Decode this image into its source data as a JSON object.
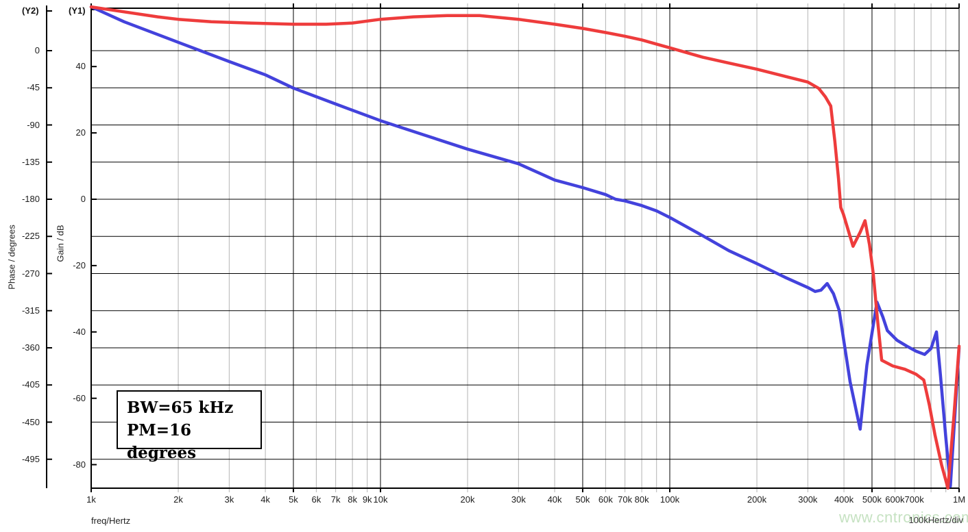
{
  "watermark": "www.cntronics.com",
  "chart_data": {
    "type": "line",
    "title": "",
    "x_axis": {
      "label": "freq/Hertz",
      "div_note": "100kHertz/div",
      "scale": "log",
      "min_hz": 1000,
      "max_hz": 1000000,
      "ticks": [
        {
          "hz": 1000,
          "label": "1k",
          "major": true
        },
        {
          "hz": 2000,
          "label": "2k",
          "major": false
        },
        {
          "hz": 3000,
          "label": "3k",
          "major": false
        },
        {
          "hz": 4000,
          "label": "4k",
          "major": false
        },
        {
          "hz": 5000,
          "label": "5k",
          "major": true
        },
        {
          "hz": 6000,
          "label": "6k",
          "major": false
        },
        {
          "hz": 7000,
          "label": "7k",
          "major": false
        },
        {
          "hz": 8000,
          "label": "8k",
          "major": false
        },
        {
          "hz": 9000,
          "label": "9k",
          "major": false
        },
        {
          "hz": 10000,
          "label": "10k",
          "major": true
        },
        {
          "hz": 20000,
          "label": "20k",
          "major": false
        },
        {
          "hz": 30000,
          "label": "30k",
          "major": false
        },
        {
          "hz": 40000,
          "label": "40k",
          "major": false
        },
        {
          "hz": 50000,
          "label": "50k",
          "major": true
        },
        {
          "hz": 60000,
          "label": "60k",
          "major": false
        },
        {
          "hz": 70000,
          "label": "70k",
          "major": false
        },
        {
          "hz": 80000,
          "label": "80k",
          "major": false
        },
        {
          "hz": 90000,
          "label": "",
          "major": false
        },
        {
          "hz": 100000,
          "label": "100k",
          "major": true
        },
        {
          "hz": 200000,
          "label": "200k",
          "major": false
        },
        {
          "hz": 300000,
          "label": "300k",
          "major": false
        },
        {
          "hz": 400000,
          "label": "400k",
          "major": false
        },
        {
          "hz": 500000,
          "label": "500k",
          "major": true
        },
        {
          "hz": 600000,
          "label": "600k",
          "major": false
        },
        {
          "hz": 700000,
          "label": "700k",
          "major": false
        },
        {
          "hz": 800000,
          "label": "",
          "major": false
        },
        {
          "hz": 900000,
          "label": "",
          "major": false
        },
        {
          "hz": 1000000,
          "label": "1M",
          "major": true
        }
      ]
    },
    "y_axes": {
      "y1": {
        "name": "(Y1)",
        "title": "Gain / dB",
        "ticks": [
          40,
          20,
          0,
          -20,
          -40,
          -60,
          -80
        ]
      },
      "y2": {
        "name": "(Y2)",
        "title": "Phase / degrees",
        "ticks": [
          0,
          -45,
          -90,
          -135,
          -180,
          -225,
          -270,
          -315,
          -360,
          -405,
          -450,
          -495
        ]
      }
    },
    "grid": {
      "horizontal_step_degrees": 45,
      "minor_color": "#b3b3b3",
      "major_color": "#000000"
    },
    "annotations": [
      "BW=65 kHz",
      "PM=16 degrees"
    ],
    "series": [
      {
        "name": "gain",
        "axis": "y1",
        "color": "#4342dc",
        "unit": "dB",
        "points": [
          [
            1000,
            58
          ],
          [
            1300,
            53.5
          ],
          [
            2000,
            47.3
          ],
          [
            3000,
            41.5
          ],
          [
            4000,
            37.5
          ],
          [
            5000,
            33.5
          ],
          [
            7000,
            28.7
          ],
          [
            10000,
            23.7
          ],
          [
            14000,
            19.5
          ],
          [
            20000,
            15.1
          ],
          [
            30000,
            10.7
          ],
          [
            40000,
            5.8
          ],
          [
            50000,
            3.5
          ],
          [
            60000,
            1.4
          ],
          [
            65000,
            0
          ],
          [
            70000,
            -0.5
          ],
          [
            80000,
            -1.9
          ],
          [
            90000,
            -3.5
          ],
          [
            100000,
            -5.5
          ],
          [
            130000,
            -11
          ],
          [
            160000,
            -15.5
          ],
          [
            200000,
            -19.4
          ],
          [
            250000,
            -23.5
          ],
          [
            300000,
            -26.6
          ],
          [
            318000,
            -27.8
          ],
          [
            333000,
            -27.4
          ],
          [
            350000,
            -25.4
          ],
          [
            368000,
            -28.5
          ],
          [
            385000,
            -33.5
          ],
          [
            400000,
            -43
          ],
          [
            420000,
            -55
          ],
          [
            455000,
            -69.3
          ],
          [
            480000,
            -50
          ],
          [
            520000,
            -31
          ],
          [
            545000,
            -35.5
          ],
          [
            565000,
            -39.6
          ],
          [
            610000,
            -42.5
          ],
          [
            660000,
            -44.3
          ],
          [
            710000,
            -45.8
          ],
          [
            760000,
            -46.8
          ],
          [
            800000,
            -45
          ],
          [
            835000,
            -40
          ],
          [
            862000,
            -53
          ],
          [
            900000,
            -72
          ],
          [
            933000,
            -86.5
          ],
          [
            1000000,
            -44.8
          ]
        ]
      },
      {
        "name": "phase",
        "axis": "y2",
        "color": "#ee3c3c",
        "unit": "degrees",
        "points": [
          [
            1000,
            53
          ],
          [
            1300,
            47
          ],
          [
            1700,
            41
          ],
          [
            2000,
            38
          ],
          [
            2600,
            35
          ],
          [
            3500,
            33.5
          ],
          [
            5000,
            32
          ],
          [
            6500,
            32
          ],
          [
            8000,
            33.5
          ],
          [
            10000,
            38
          ],
          [
            13000,
            41
          ],
          [
            17000,
            42.5
          ],
          [
            22000,
            42.5
          ],
          [
            30000,
            38
          ],
          [
            40000,
            32
          ],
          [
            50000,
            27
          ],
          [
            60000,
            22
          ],
          [
            70000,
            17.5
          ],
          [
            80000,
            13
          ],
          [
            90000,
            8
          ],
          [
            100000,
            3.5
          ],
          [
            130000,
            -8
          ],
          [
            160000,
            -15
          ],
          [
            200000,
            -22.5
          ],
          [
            250000,
            -31
          ],
          [
            300000,
            -38
          ],
          [
            327000,
            -45.5
          ],
          [
            345000,
            -56
          ],
          [
            360000,
            -67
          ],
          [
            372000,
            -110
          ],
          [
            383000,
            -155
          ],
          [
            390000,
            -190
          ],
          [
            398000,
            -198
          ],
          [
            430000,
            -237
          ],
          [
            455000,
            -220
          ],
          [
            473000,
            -206
          ],
          [
            490000,
            -235
          ],
          [
            505000,
            -270
          ],
          [
            522000,
            -325
          ],
          [
            540000,
            -375
          ],
          [
            590000,
            -382
          ],
          [
            650000,
            -386
          ],
          [
            710000,
            -392
          ],
          [
            755000,
            -399
          ],
          [
            790000,
            -430
          ],
          [
            825000,
            -465
          ],
          [
            870000,
            -502
          ],
          [
            915000,
            -530
          ],
          [
            960000,
            -442
          ],
          [
            1000000,
            -358
          ]
        ]
      }
    ],
    "bandwidth_hz": 65000,
    "phase_margin_degrees": 16
  }
}
